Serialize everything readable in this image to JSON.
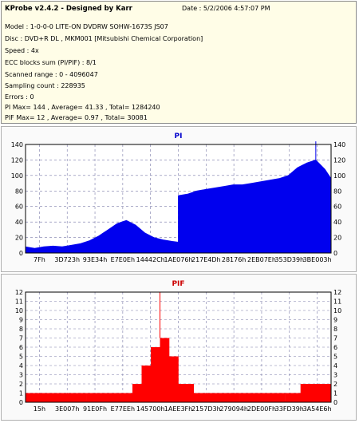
{
  "info": {
    "title": "KProbe v2.4.2 - Designed by Karr",
    "date": "Date : 5/2/2006 4:57:07 PM",
    "lines": [
      "Model : 1-0-0-0 LITE-ON DVDRW SOHW-1673S JS07",
      "Disc : DVD+R DL , MKM001 [Mitsubishi Chemical Corporation]",
      "Speed : 4x",
      "ECC blocks sum (PI/PIF) : 8/1",
      "Scanned range : 0 - 4096047",
      "Sampling count : 228935",
      "Errors : 0",
      "PI Max= 144 , Average= 41.33 , Total= 1284240",
      "PIF Max= 12 , Average= 0.97 , Total= 30081"
    ]
  },
  "chart_data": [
    {
      "type": "area",
      "title": "PI",
      "title_color": "#0000cc",
      "series_color": "#0000ee",
      "ylim": [
        0,
        140
      ],
      "yticks": [
        0,
        20,
        40,
        60,
        80,
        100,
        120,
        140
      ],
      "xticks": [
        "7Fh",
        "3D723h",
        "93E34h",
        "E7E0Eh",
        "14442Ch",
        "1AE076h",
        "217E4Dh",
        "28176h",
        "2EB07Eh",
        "353D39h",
        "3BE003h"
      ],
      "max_marker": 144,
      "x": [
        0,
        0.03,
        0.06,
        0.09,
        0.12,
        0.15,
        0.18,
        0.21,
        0.24,
        0.27,
        0.3,
        0.33,
        0.36,
        0.39,
        0.42,
        0.45,
        0.48,
        0.5,
        0.5,
        0.53,
        0.56,
        0.59,
        0.62,
        0.65,
        0.68,
        0.71,
        0.74,
        0.77,
        0.8,
        0.83,
        0.86,
        0.89,
        0.92,
        0.95,
        0.98,
        1.0
      ],
      "y": [
        8,
        6,
        8,
        9,
        8,
        10,
        12,
        16,
        22,
        30,
        38,
        42,
        36,
        26,
        20,
        17,
        15,
        14,
        74,
        76,
        80,
        82,
        84,
        86,
        88,
        88,
        90,
        92,
        94,
        96,
        100,
        110,
        116,
        120,
        108,
        96
      ]
    },
    {
      "type": "bar",
      "title": "PIF",
      "title_color": "#cc0000",
      "series_color": "#ff0000",
      "ylim": [
        0,
        12
      ],
      "yticks": [
        0,
        1,
        2,
        3,
        4,
        5,
        6,
        7,
        8,
        9,
        10,
        11,
        12
      ],
      "xticks": [
        "15h",
        "3E007h",
        "91E0Fh",
        "E77EEh",
        "145700h",
        "1AEE3Fh",
        "2157D3h",
        "279094h",
        "2DE00Fh",
        "33FD39h",
        "3A54E6h"
      ],
      "max_marker": 12,
      "x": [
        0,
        0.05,
        0.1,
        0.15,
        0.2,
        0.25,
        0.3,
        0.35,
        0.38,
        0.41,
        0.44,
        0.47,
        0.5,
        0.55,
        0.6,
        0.65,
        0.7,
        0.75,
        0.8,
        0.85,
        0.9,
        0.95,
        1.0
      ],
      "y": [
        1,
        1,
        1,
        1,
        1,
        1,
        1,
        2,
        4,
        6,
        7,
        5,
        2,
        1,
        1,
        1,
        1,
        1,
        1,
        1,
        2,
        2,
        2
      ]
    }
  ]
}
